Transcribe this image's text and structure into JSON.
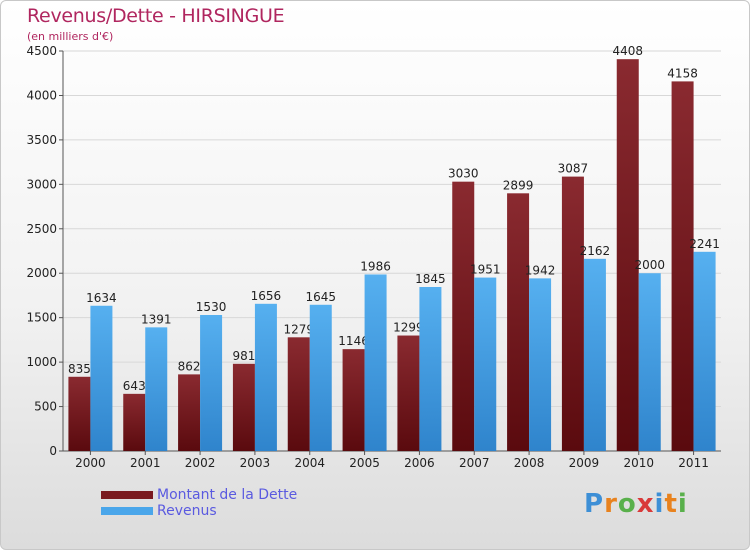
{
  "chart_data": {
    "type": "bar",
    "title": "Revenus/Dette - HIRSINGUE",
    "subtitle": "(en milliers d'€)",
    "categories": [
      "2000",
      "2001",
      "2002",
      "2003",
      "2004",
      "2005",
      "2006",
      "2007",
      "2008",
      "2009",
      "2010",
      "2011"
    ],
    "series": [
      {
        "name": "Montant de la Dette",
        "color": "#7a1a1f",
        "values": [
          835,
          643,
          862,
          981,
          1279,
          1146,
          1299,
          3030,
          2899,
          3087,
          4408,
          4158
        ]
      },
      {
        "name": "Revenus",
        "color": "#4aa6ea",
        "values": [
          1634,
          1391,
          1530,
          1656,
          1645,
          1986,
          1845,
          1951,
          1942,
          2162,
          2000,
          2241
        ]
      }
    ],
    "y_ticks": [
      "0",
      "500",
      "1000",
      "1500",
      "2000",
      "2500",
      "3000",
      "3500",
      "4000",
      "4500"
    ],
    "ylim": [
      0,
      4500
    ],
    "grid": true,
    "legend_position": "bottom-left"
  },
  "logo": {
    "letters": [
      "P",
      "r",
      "o",
      "x",
      "i",
      "t",
      "i"
    ],
    "colors": [
      "#3d8fd6",
      "#e8821e",
      "#59b04b",
      "#d93a3a",
      "#3d8fd6",
      "#e8821e",
      "#59b04b"
    ]
  }
}
